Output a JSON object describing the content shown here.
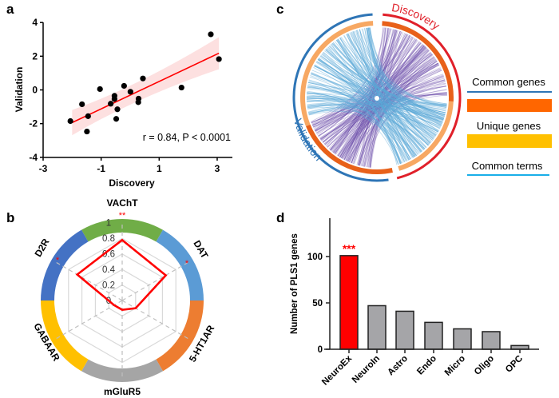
{
  "panel_labels": {
    "a": "a",
    "b": "b",
    "c": "c",
    "d": "d"
  },
  "colors": {
    "red": "#ff0000",
    "point": "#000000",
    "ci": "#fde0e0",
    "chord_purple": "#6a4aa8",
    "chord_blue": "#5aa8d8",
    "discovery": "#e0202a",
    "validation": "#2e75b6",
    "dark_orange": "#e8611a",
    "light_orange": "#f7a863",
    "legend_orange": "#ff6600",
    "legend_yellow": "#ffc000",
    "legend_cyan": "#19aee8",
    "bar_red": "#ff0000",
    "bar_gray": "#a5a5a8"
  },
  "chart_data": [
    {
      "type": "scatter",
      "panel": "a",
      "xlabel": "Discovery",
      "ylabel": "Validation",
      "xlim": [
        -3,
        3.5
      ],
      "ylim": [
        -4,
        4
      ],
      "xticks": [
        "-3",
        "-1",
        "1",
        "3"
      ],
      "yticks": [
        "4",
        "2",
        "0",
        "-2",
        "-4"
      ],
      "annotation": "r = 0.84, P < 0.0001",
      "points": [
        [
          -2.06,
          -1.85
        ],
        [
          -1.66,
          -0.85
        ],
        [
          -1.45,
          -1.56
        ],
        [
          -1.49,
          -2.47
        ],
        [
          -1.04,
          0.05
        ],
        [
          -0.67,
          -0.82
        ],
        [
          -0.54,
          -0.35
        ],
        [
          -0.54,
          -0.54
        ],
        [
          -0.44,
          -1.15
        ],
        [
          -0.48,
          -1.72
        ],
        [
          -0.21,
          0.24
        ],
        [
          0.01,
          -0.11
        ],
        [
          0.29,
          -0.52
        ],
        [
          0.28,
          -0.73
        ],
        [
          0.44,
          0.68
        ],
        [
          1.77,
          0.14
        ],
        [
          2.78,
          3.3
        ],
        [
          3.06,
          1.83
        ]
      ],
      "fit": {
        "x": [
          -2.0,
          3.06
        ],
        "y": [
          -1.94,
          2.18
        ]
      }
    },
    {
      "type": "radar",
      "panel": "b",
      "axes": [
        "VAChT",
        "DAT",
        "5-HT1AR",
        "mGluR5",
        "GABAAR",
        "D2R"
      ],
      "values": [
        0.78,
        0.65,
        0.2,
        0.12,
        0.12,
        0.67
      ],
      "significance": [
        "**",
        "*",
        "",
        "",
        "",
        "*"
      ],
      "ticks": [
        "0",
        "0.2",
        "0.4",
        "0.6",
        "0.8",
        "1"
      ],
      "ring_colors": [
        "#70ad47",
        "#5b9bd5",
        "#ed7d31",
        "#a5a5a5",
        "#ffc000",
        "#4472c4"
      ]
    },
    {
      "type": "chord",
      "panel": "c",
      "groups": [
        "Discovery",
        "Validation"
      ],
      "legend": [
        "Common genes",
        "Unique genes",
        "Common terms"
      ]
    },
    {
      "type": "bar",
      "panel": "d",
      "ylabel": "Number of PLS1 genes",
      "categories": [
        "NeuroEx",
        "NeuroIn",
        "Astro",
        "Endo",
        "Micro",
        "Oligo",
        "OPC"
      ],
      "values": [
        101,
        47,
        41,
        29,
        22,
        19,
        4
      ],
      "significance": [
        "***",
        "",
        "",
        "",
        "",
        "",
        ""
      ],
      "ylim": [
        0,
        140
      ],
      "yticks": [
        "0",
        "50",
        "100"
      ]
    }
  ]
}
